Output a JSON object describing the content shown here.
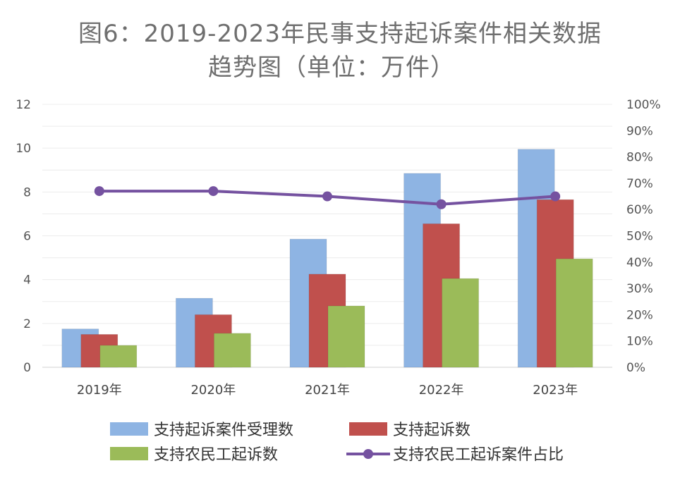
{
  "chart_data": {
    "type": "bar",
    "title_line1": "图6：2019-2023年民事支持起诉案件相关数据",
    "title_line2": "趋势图（单位：万件）",
    "categories": [
      "2019年",
      "2020年",
      "2021年",
      "2022年",
      "2023年"
    ],
    "series": [
      {
        "name": "支持起诉案件受理数",
        "type": "bar",
        "axis": "left",
        "color": "#8eb4e3",
        "values": [
          1.75,
          3.15,
          5.85,
          8.85,
          9.95
        ]
      },
      {
        "name": "支持起诉数",
        "type": "bar",
        "axis": "left",
        "color": "#c0504d",
        "values": [
          1.5,
          2.4,
          4.25,
          6.55,
          7.65
        ]
      },
      {
        "name": "支持农民工起诉数",
        "type": "bar",
        "axis": "left",
        "color": "#9bbb59",
        "values": [
          1.0,
          1.55,
          2.8,
          4.05,
          4.95
        ]
      },
      {
        "name": "支持农民工起诉案件占比",
        "type": "line",
        "axis": "right",
        "color": "#7552a0",
        "values": [
          0.67,
          0.67,
          0.65,
          0.62,
          0.65
        ]
      }
    ],
    "y_left": {
      "min": 0,
      "max": 12,
      "ticks": [
        "0",
        "2",
        "4",
        "6",
        "8",
        "10",
        "12"
      ]
    },
    "y_right": {
      "min": 0,
      "max": 1,
      "ticks": [
        "0%",
        "10%",
        "20%",
        "30%",
        "40%",
        "50%",
        "60%",
        "70%",
        "80%",
        "90%",
        "100%"
      ]
    },
    "grid": true,
    "legend_position": "bottom"
  }
}
